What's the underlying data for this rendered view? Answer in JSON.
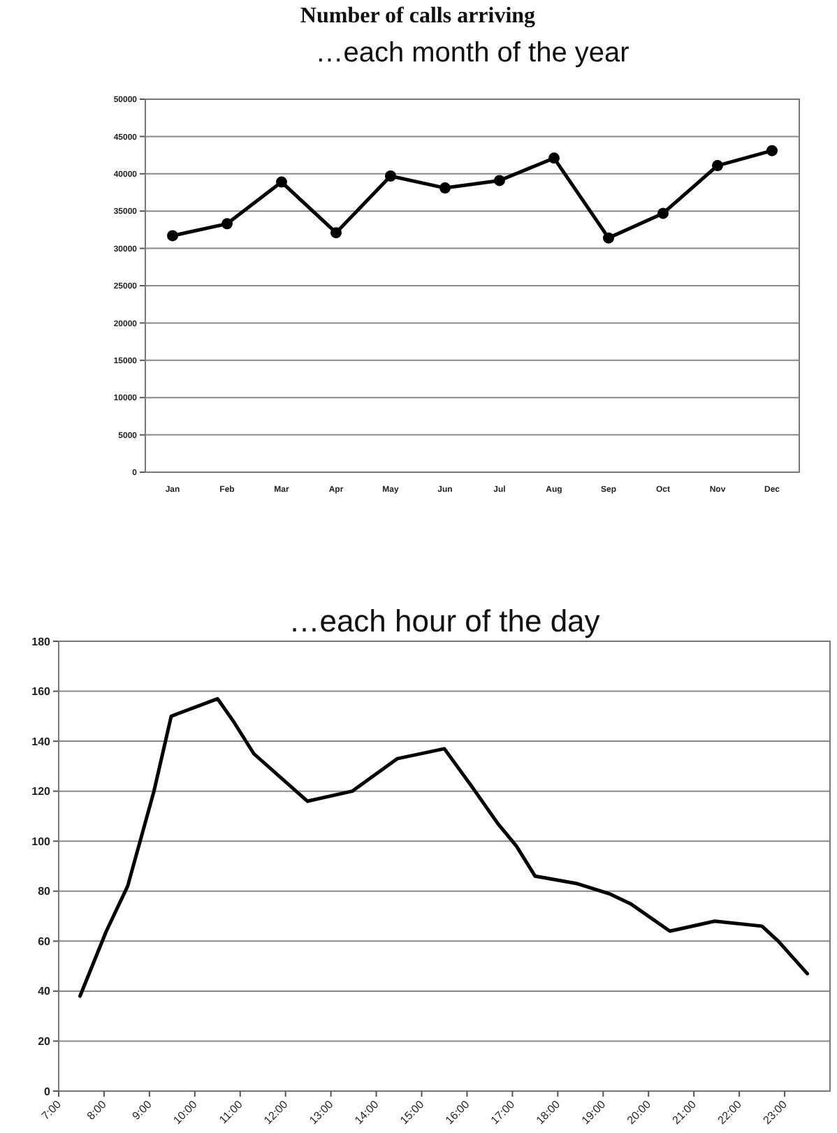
{
  "chart_data": [
    {
      "type": "line",
      "title": "Number of calls arriving",
      "subtitle": "…each month of the year",
      "categories": [
        "Jan",
        "Feb",
        "Mar",
        "Apr",
        "May",
        "Jun",
        "Jul",
        "Aug",
        "Sep",
        "Oct",
        "Nov",
        "Dec"
      ],
      "series": [
        {
          "color": "#000000",
          "values": [
            31700,
            33300,
            38900,
            32100,
            39700,
            38100,
            39100,
            42100,
            31400,
            34700,
            41100,
            43100
          ]
        }
      ],
      "ylim": [
        0,
        50000
      ],
      "yticks": [
        0,
        5000,
        10000,
        15000,
        20000,
        25000,
        30000,
        35000,
        40000,
        45000,
        50000
      ],
      "grid": "y",
      "marker": "circle",
      "line_style": "solid"
    },
    {
      "type": "line",
      "title": "…each hour of the day",
      "x": [
        7.47,
        8.05,
        8.52,
        9.1,
        9.48,
        10.5,
        10.85,
        11.3,
        12.48,
        13.47,
        14.46,
        15.5,
        16.1,
        16.68,
        17.09,
        17.5,
        18.43,
        19.13,
        19.6,
        20.47,
        21.46,
        22.5,
        22.86,
        23.5
      ],
      "series": [
        {
          "color": "#000000",
          "values": [
            38,
            64,
            82,
            120,
            150,
            157,
            148,
            135,
            116,
            120,
            133,
            137,
            122,
            107,
            98,
            86,
            83,
            79,
            75,
            64,
            68,
            66,
            60,
            47
          ]
        }
      ],
      "xlim": [
        7,
        24
      ],
      "xticks": [
        {
          "value": 7,
          "label": "7:00"
        },
        {
          "value": 8,
          "label": "8:00"
        },
        {
          "value": 9,
          "label": "9:00"
        },
        {
          "value": 10,
          "label": "10:00"
        },
        {
          "value": 11,
          "label": "11:00"
        },
        {
          "value": 12,
          "label": "12:00"
        },
        {
          "value": 13,
          "label": "13:00"
        },
        {
          "value": 14,
          "label": "14:00"
        },
        {
          "value": 15,
          "label": "15:00"
        },
        {
          "value": 16,
          "label": "16:00"
        },
        {
          "value": 17,
          "label": "17:00"
        },
        {
          "value": 18,
          "label": "18:00"
        },
        {
          "value": 19,
          "label": "19:00"
        },
        {
          "value": 20,
          "label": "20:00"
        },
        {
          "value": 21,
          "label": "21:00"
        },
        {
          "value": 22,
          "label": "22:00"
        },
        {
          "value": 23,
          "label": "23:00"
        }
      ],
      "ylim": [
        0,
        180
      ],
      "yticks": [
        0,
        20,
        40,
        60,
        80,
        100,
        120,
        140,
        160,
        180
      ],
      "grid": "y",
      "marker": "none",
      "line_style": "solid"
    }
  ]
}
